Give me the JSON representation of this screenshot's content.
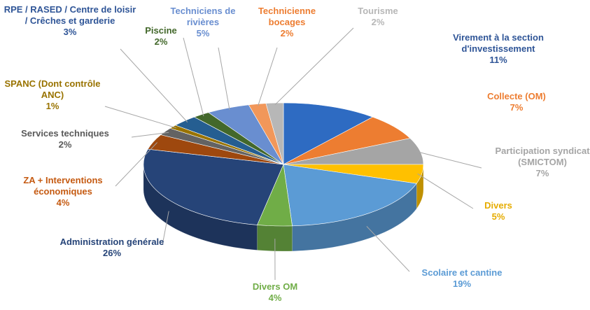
{
  "chart_data": {
    "type": "pie3d",
    "categories": [
      "Virement à la section d'investissement",
      "Collecte (OM)",
      "Participation syndicat (SMICTOM)",
      "Divers",
      "Scolaire et cantine",
      "Divers OM",
      "Administration générale",
      "ZA + Interventions économiques",
      "Services techniques",
      "SPANC (Dont contrôle ANC)",
      "RPE / RASED / Centre de loisir / Crêches et garderie",
      "Piscine",
      "Techniciens de rivières",
      "Technicienne bocages",
      "Tourisme"
    ],
    "values": [
      11,
      7,
      7,
      5,
      19,
      4,
      26,
      4,
      2,
      1,
      3,
      2,
      5,
      2,
      2
    ],
    "value_labels": [
      "11%",
      "7%",
      "7%",
      "5%",
      "19%",
      "4%",
      "26%",
      "4%",
      "2%",
      "1%",
      "3%",
      "2%",
      "5%",
      "2%",
      "2%"
    ],
    "colors": [
      "#2e6bc2",
      "#ed7d31",
      "#a5a5a5",
      "#ffc000",
      "#5b9bd5",
      "#70ad47",
      "#264478",
      "#9e480e",
      "#636363",
      "#997300",
      "#255e91",
      "#43682b",
      "#698ed0",
      "#f1975a",
      "#b7b7b7"
    ],
    "label_colors": [
      "#2f5597",
      "#ed7d31",
      "#a5a5a5",
      "#e6ac00",
      "#5b9bd5",
      "#70ad47",
      "#264478",
      "#c55a11",
      "#595959",
      "#997300",
      "#2f5597",
      "#43682b",
      "#698ed0",
      "#ed7d31",
      "#b7b7b7"
    ]
  }
}
